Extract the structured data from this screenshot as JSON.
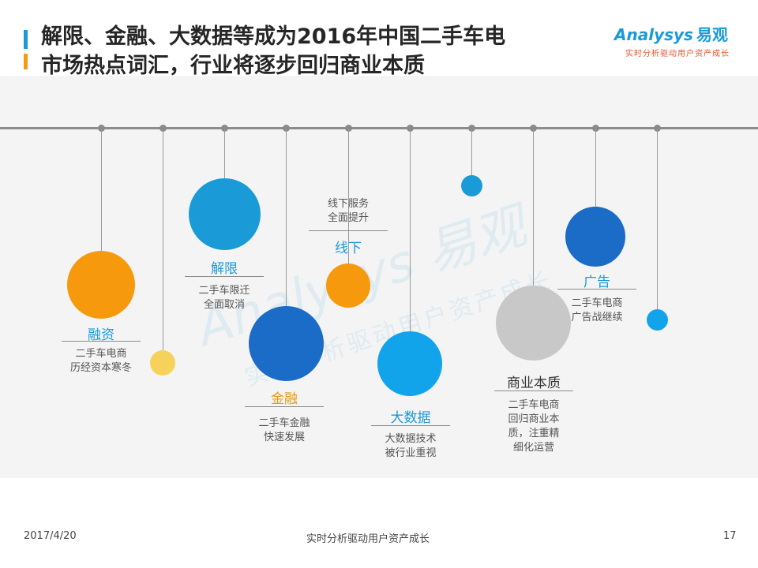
{
  "header": {
    "title_line1": "解限、金融、大数据等成为2016年中国二手车电",
    "title_line2": "市场热点词汇，行业将逐步回归商业本质",
    "logo_text": "nalysys",
    "logo_letter": "A",
    "logo_cn": "易观",
    "logo_slogan": "实时分析驱动用户资产成长"
  },
  "watermark": {
    "main": "Analysys 易观",
    "sub": "实时分析驱动用户资产成长"
  },
  "items": [
    {
      "label": "融资",
      "desc_line1": "二手车电商",
      "desc_line2": "历经资本寒冬",
      "color": "#f7990d"
    },
    {
      "color": "#f6d25a"
    },
    {
      "label": "解限",
      "desc_line1": "二手车限迁",
      "desc_line2": "全面取消",
      "color": "#1a9bd7"
    },
    {
      "label": "金融",
      "desc_line1": "二手车金融",
      "desc_line2": "快速发展",
      "color": "#1b6cc6"
    },
    {
      "label": "线下",
      "note_line1": "线下服务",
      "note_line2": "全面提升",
      "color": "#f7990d"
    },
    {
      "label": "大数据",
      "desc_line1": "大数据技术",
      "desc_line2": "被行业重视",
      "color": "#12a4ea"
    },
    {
      "color": "#1a9bd7"
    },
    {
      "label": "商业本质",
      "desc_line1": "二手车电商",
      "desc_line2": "回归商业本",
      "desc_line3": "质，注重精",
      "desc_line4": "细化运营",
      "color": "#c8c8c8"
    },
    {
      "label": "广告",
      "desc_line1": "二手车电商",
      "desc_line2": "广告战继续",
      "color": "#1b6cc6"
    },
    {
      "color": "#12a4ea"
    }
  ],
  "footer": {
    "date": "2017/4/20",
    "slogan": "实时分析驱动用户资产成长",
    "page": "17"
  }
}
